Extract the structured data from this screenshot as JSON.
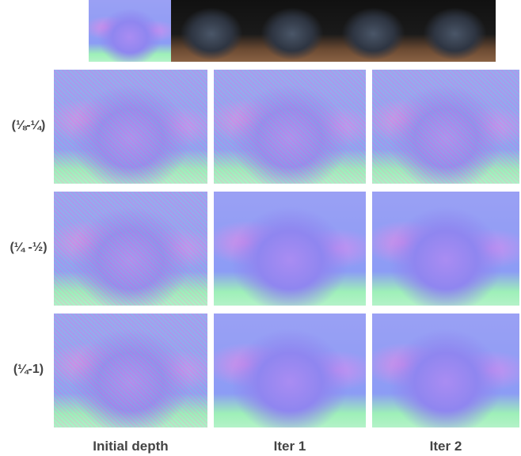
{
  "row_labels": [
    "(⅛-¼)",
    "(¼ -½)",
    "(¼-1)"
  ],
  "column_labels": [
    "Initial depth",
    "Iter 1",
    "Iter 2"
  ]
}
